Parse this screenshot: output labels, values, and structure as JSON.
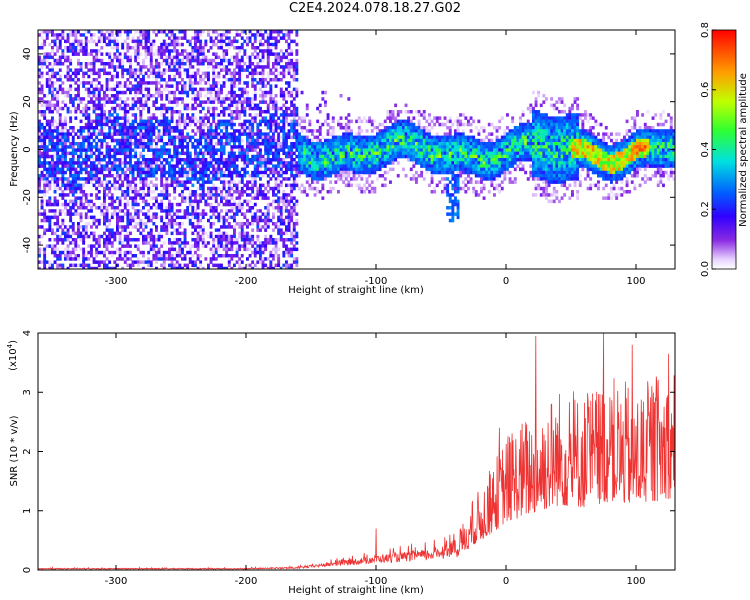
{
  "title": "C2E4.2024.078.18.27.G02",
  "chart_data": [
    {
      "type": "heatmap",
      "xlabel": "Height of straight line (km)",
      "ylabel": "Frequency (Hz)",
      "xlim": [
        -360,
        130
      ],
      "ylim": [
        -50,
        50
      ],
      "x_ticks": [
        -300,
        -200,
        -100,
        0,
        100
      ],
      "y_ticks": [
        -40,
        -20,
        0,
        20,
        40
      ],
      "colorbar": {
        "label": "Normalized spectral amplitude",
        "range": [
          0,
          0.8
        ],
        "ticks": [
          "0.0",
          "0.2",
          "0.4",
          "0.6",
          "0.8"
        ]
      },
      "features": {
        "diffuse_region_end_km": -160,
        "band_center_hz": 0,
        "band_halfwidth_hz": 8,
        "dip_at_km": -42,
        "dip_min_hz": -30
      }
    },
    {
      "type": "line",
      "xlabel": "Height of straight line (km)",
      "ylabel": "SNR (10 * v/v)",
      "y_multiplier": "(x10",
      "y_multiplier_exp": "4",
      "xlim": [
        -360,
        130
      ],
      "ylim": [
        0,
        4
      ],
      "x_ticks": [
        -300,
        -200,
        -100,
        0,
        100
      ],
      "y_ticks": [
        0,
        1,
        2,
        3,
        4
      ],
      "color": "#ee3333",
      "envelope": [
        [
          -360,
          0.03
        ],
        [
          -200,
          0.03
        ],
        [
          -160,
          0.05
        ],
        [
          -130,
          0.15
        ],
        [
          -100,
          0.25
        ],
        [
          -60,
          0.35
        ],
        [
          -40,
          0.5
        ],
        [
          -25,
          1.2
        ],
        [
          -10,
          1.8
        ],
        [
          0,
          2.3
        ],
        [
          20,
          2.7
        ],
        [
          40,
          3.1
        ],
        [
          60,
          3.0
        ],
        [
          80,
          3.3
        ],
        [
          100,
          3.1
        ],
        [
          130,
          3.5
        ]
      ],
      "peaks": [
        [
          -100,
          0.7
        ],
        [
          -5,
          2.4
        ],
        [
          23,
          3.95
        ],
        [
          75,
          4.0
        ],
        [
          97,
          3.8
        ],
        [
          125,
          3.65
        ]
      ]
    }
  ]
}
